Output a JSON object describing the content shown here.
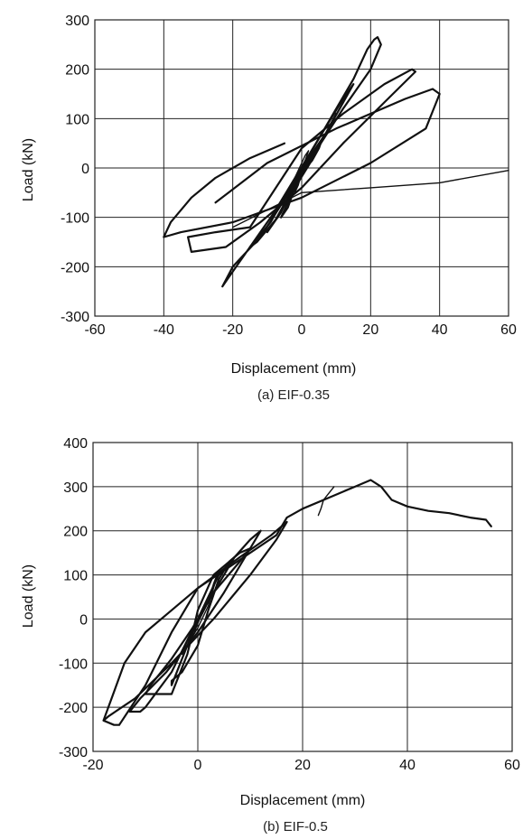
{
  "chart_data": [
    {
      "type": "line",
      "caption": "(a) EIF-0.35",
      "xlabel": "Displacement (mm)",
      "ylabel": "Load (kN)",
      "xlim": [
        -60,
        60
      ],
      "ylim": [
        -300,
        300
      ],
      "xticks": [
        -60,
        -40,
        -20,
        0,
        20,
        40,
        60
      ],
      "yticks": [
        -300,
        -200,
        -100,
        0,
        100,
        200,
        300
      ],
      "grid": true,
      "series": [
        {
          "values": [
            [
              -2,
              -20
            ],
            [
              -1,
              -5
            ],
            [
              0,
              10
            ],
            [
              1,
              25
            ],
            [
              2,
              35
            ],
            [
              1,
              15
            ],
            [
              0,
              -10
            ],
            [
              -1,
              -35
            ],
            [
              -2,
              -50
            ],
            [
              -1,
              -30
            ],
            [
              0,
              -5
            ]
          ]
        },
        {
          "values": [
            [
              0,
              -10
            ],
            [
              3,
              15
            ],
            [
              5,
              40
            ],
            [
              6,
              60
            ],
            [
              5,
              40
            ],
            [
              2,
              5
            ],
            [
              -2,
              -40
            ],
            [
              -4,
              -80
            ],
            [
              -6,
              -100
            ],
            [
              -4,
              -70
            ],
            [
              -1,
              -30
            ],
            [
              0,
              -10
            ]
          ]
        },
        {
          "values": [
            [
              -2,
              -30
            ],
            [
              3,
              30
            ],
            [
              8,
              80
            ],
            [
              10,
              110
            ],
            [
              7,
              70
            ],
            [
              2,
              10
            ],
            [
              -4,
              -60
            ],
            [
              -8,
              -110
            ],
            [
              -10,
              -130
            ],
            [
              -6,
              -90
            ],
            [
              -2,
              -30
            ]
          ]
        },
        {
          "values": [
            [
              -5,
              -60
            ],
            [
              5,
              60
            ],
            [
              12,
              140
            ],
            [
              15,
              170
            ],
            [
              11,
              120
            ],
            [
              3,
              20
            ],
            [
              -7,
              -100
            ],
            [
              -13,
              -150
            ],
            [
              -15,
              -160
            ],
            [
              -9,
              -110
            ],
            [
              -5,
              -60
            ]
          ]
        },
        {
          "values": [
            [
              -8,
              -90
            ],
            [
              5,
              60
            ],
            [
              15,
              180
            ],
            [
              19,
              240
            ],
            [
              21,
              260
            ],
            [
              22,
              265
            ],
            [
              23,
              250
            ],
            [
              20,
              200
            ],
            [
              12,
              120
            ],
            [
              0,
              -10
            ],
            [
              -12,
              -140
            ],
            [
              -20,
              -200
            ],
            [
              -23,
              -240
            ],
            [
              -21,
              -220
            ],
            [
              -12,
              -130
            ],
            [
              -8,
              -90
            ]
          ]
        },
        {
          "values": [
            [
              -15,
              -120
            ],
            [
              0,
              40
            ],
            [
              12,
              110
            ],
            [
              24,
              170
            ],
            [
              32,
              200
            ],
            [
              33,
              195
            ],
            [
              25,
              140
            ],
            [
              12,
              50
            ],
            [
              0,
              -40
            ],
            [
              -12,
              -110
            ],
            [
              -22,
              -160
            ],
            [
              -32,
              -170
            ],
            [
              -33,
              -140
            ],
            [
              -25,
              -130
            ],
            [
              -15,
              -120
            ]
          ]
        },
        {
          "values": [
            [
              -25,
              -70
            ],
            [
              -10,
              10
            ],
            [
              10,
              80
            ],
            [
              30,
              140
            ],
            [
              38,
              160
            ],
            [
              40,
              150
            ],
            [
              36,
              80
            ],
            [
              20,
              10
            ],
            [
              0,
              -60
            ],
            [
              -20,
              -110
            ],
            [
              -35,
              -130
            ],
            [
              -40,
              -140
            ],
            [
              -38,
              -110
            ],
            [
              -32,
              -60
            ],
            [
              -25,
              -20
            ],
            [
              -15,
              20
            ],
            [
              -5,
              50
            ]
          ]
        },
        {
          "values": [
            [
              -20,
              -120
            ],
            [
              0,
              -50
            ],
            [
              20,
              -40
            ],
            [
              40,
              -30
            ],
            [
              60,
              -5
            ]
          ]
        }
      ]
    },
    {
      "type": "line",
      "caption": "(b) EIF-0.5",
      "xlabel": "Displacement (mm)",
      "ylabel": "Load (kN)",
      "xlim": [
        -20,
        60
      ],
      "ylim": [
        -300,
        400
      ],
      "xticks": [
        -20,
        0,
        20,
        40,
        60
      ],
      "yticks": [
        -300,
        -200,
        -100,
        0,
        100,
        200,
        300,
        400
      ],
      "grid": true,
      "series": [
        {
          "values": [
            [
              -1,
              -40
            ],
            [
              0,
              -10
            ],
            [
              1,
              20
            ],
            [
              2,
              40
            ],
            [
              3,
              80
            ],
            [
              4,
              110
            ],
            [
              3,
              70
            ],
            [
              2,
              30
            ],
            [
              0,
              -20
            ],
            [
              -2,
              -60
            ],
            [
              -3,
              -80
            ],
            [
              -2,
              -50
            ],
            [
              -1,
              -40
            ]
          ]
        },
        {
          "values": [
            [
              -3,
              -120
            ],
            [
              0,
              -60
            ],
            [
              2,
              20
            ],
            [
              4,
              90
            ],
            [
              6,
              130
            ],
            [
              7,
              140
            ],
            [
              5,
              100
            ],
            [
              2,
              40
            ],
            [
              -1,
              -30
            ],
            [
              -3,
              -90
            ],
            [
              -5,
              -150
            ],
            [
              -5,
              -140
            ],
            [
              -3,
              -120
            ]
          ]
        },
        {
          "values": [
            [
              -5,
              -170
            ],
            [
              -2,
              -80
            ],
            [
              0,
              20
            ],
            [
              3,
              100
            ],
            [
              8,
              150
            ],
            [
              10,
              160
            ],
            [
              8,
              130
            ],
            [
              3,
              60
            ],
            [
              -1,
              -20
            ],
            [
              -5,
              -90
            ],
            [
              -9,
              -150
            ],
            [
              -10,
              -170
            ],
            [
              -7,
              -170
            ],
            [
              -5,
              -170
            ]
          ]
        },
        {
          "values": [
            [
              -10,
              -200
            ],
            [
              -5,
              -120
            ],
            [
              0,
              0
            ],
            [
              4,
              100
            ],
            [
              10,
              180
            ],
            [
              12,
              200
            ],
            [
              9,
              140
            ],
            [
              5,
              60
            ],
            [
              0,
              -30
            ],
            [
              -6,
              -120
            ],
            [
              -11,
              -180
            ],
            [
              -13,
              -210
            ],
            [
              -11,
              -210
            ],
            [
              -10,
              -200
            ]
          ]
        },
        {
          "values": [
            [
              -15,
              -240
            ],
            [
              -10,
              -150
            ],
            [
              -5,
              -30
            ],
            [
              0,
              70
            ],
            [
              8,
              140
            ],
            [
              14,
              190
            ],
            [
              17,
              220
            ],
            [
              15,
              180
            ],
            [
              10,
              100
            ],
            [
              3,
              0
            ],
            [
              -5,
              -100
            ],
            [
              -12,
              -180
            ],
            [
              -17,
              -220
            ],
            [
              -18,
              -230
            ],
            [
              -16,
              -240
            ],
            [
              -15,
              -240
            ]
          ]
        },
        {
          "values": [
            [
              -18,
              -230
            ],
            [
              -14,
              -100
            ],
            [
              -10,
              -30
            ],
            [
              -5,
              20
            ],
            [
              0,
              70
            ],
            [
              5,
              110
            ],
            [
              10,
              150
            ],
            [
              15,
              190
            ],
            [
              17,
              230
            ],
            [
              20,
              250
            ],
            [
              25,
              275
            ],
            [
              28,
              290
            ],
            [
              30,
              300
            ],
            [
              33,
              315
            ],
            [
              35,
              300
            ],
            [
              37,
              270
            ],
            [
              40,
              255
            ],
            [
              44,
              245
            ],
            [
              48,
              240
            ],
            [
              52,
              230
            ],
            [
              55,
              225
            ],
            [
              56,
              210
            ]
          ]
        },
        {
          "values": [
            [
              23,
              235
            ],
            [
              23.5,
              250
            ],
            [
              24,
              270
            ],
            [
              25,
              285
            ],
            [
              26,
              300
            ]
          ]
        }
      ]
    }
  ]
}
